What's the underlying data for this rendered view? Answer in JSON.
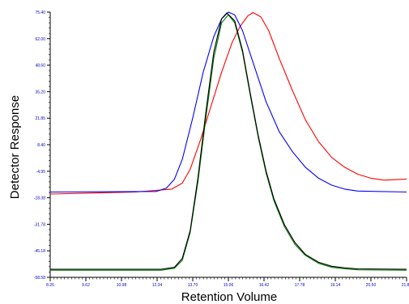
{
  "chart_data": {
    "type": "line",
    "xlabel": "Retention Volume",
    "ylabel": "Detector Response",
    "xlim": [
      8.26,
      21.86
    ],
    "ylim": [
      -58.58,
      75.4
    ],
    "grid": false,
    "x_ticks": [
      "8.26",
      "9.62",
      "10.98",
      "12.34",
      "13.70",
      "15.06",
      "16.42",
      "17.78",
      "19.14",
      "20.50",
      "21.86"
    ],
    "y_ticks": [
      "75.40",
      "62.00",
      "48.60",
      "35.20",
      "21.85",
      "8.40",
      "-4.95",
      "-18.38",
      "-31.78",
      "-45.18",
      "-58.58"
    ],
    "series": [
      {
        "color": "#ff0000",
        "x": [
          8.26,
          11.5,
          12.9,
          13.3,
          13.6,
          14.0,
          14.4,
          14.8,
          15.2,
          15.5,
          15.8,
          16.0,
          16.3,
          16.6,
          17.0,
          17.5,
          18.0,
          18.5,
          19.0,
          19.5,
          20.0,
          20.5,
          21.0,
          21.86
        ],
        "y": [
          -16.5,
          -15.5,
          -14.0,
          -11.0,
          -4.0,
          11.0,
          28.0,
          45.0,
          60.0,
          68.0,
          73.5,
          75.2,
          73.0,
          66.0,
          52.0,
          36.0,
          21.0,
          10.0,
          2.0,
          -3.0,
          -6.5,
          -8.5,
          -9.5,
          -9.0
        ]
      },
      {
        "color": "#0000ff",
        "x": [
          8.26,
          12.3,
          12.7,
          13.0,
          13.3,
          13.7,
          14.1,
          14.5,
          14.8,
          15.06,
          15.3,
          15.6,
          16.0,
          16.5,
          17.0,
          17.5,
          18.0,
          18.5,
          19.0,
          19.5,
          20.0,
          21.86
        ],
        "y": [
          -15.5,
          -15.2,
          -13.5,
          -9.0,
          1.0,
          22.0,
          45.0,
          63.0,
          72.0,
          75.4,
          74.0,
          66.0,
          50.0,
          30.0,
          15.0,
          5.0,
          -3.0,
          -8.5,
          -12.0,
          -14.0,
          -15.0,
          -15.5
        ]
      },
      {
        "color": "#007a00",
        "x": [
          8.26,
          12.5,
          13.0,
          13.3,
          13.6,
          13.9,
          14.2,
          14.5,
          14.8,
          15.06,
          15.3,
          15.6,
          15.9,
          16.2,
          16.5,
          16.8,
          17.2,
          17.6,
          18.0,
          18.5,
          19.0,
          19.5,
          20.0,
          21.86
        ],
        "y": [
          -55.0,
          -55.0,
          -54.0,
          -50.0,
          -36.0,
          -10.0,
          22.0,
          52.0,
          70.0,
          74.0,
          70.0,
          55.0,
          33.0,
          12.0,
          -6.0,
          -20.0,
          -33.0,
          -42.0,
          -47.5,
          -51.5,
          -53.5,
          -54.3,
          -54.8,
          -55.0
        ]
      },
      {
        "color": "#000000",
        "x": [
          8.26,
          12.5,
          13.0,
          13.3,
          13.6,
          13.9,
          14.2,
          14.5,
          14.8,
          15.0,
          15.3,
          15.6,
          15.9,
          16.2,
          16.5,
          16.8,
          17.2,
          17.6,
          18.0,
          18.5,
          19.0,
          19.5,
          20.0,
          21.86
        ],
        "y": [
          -54.5,
          -54.5,
          -53.5,
          -49.0,
          -35.0,
          -8.0,
          25.0,
          55.0,
          72.0,
          75.0,
          71.0,
          56.0,
          34.0,
          13.0,
          -5.0,
          -19.0,
          -32.0,
          -41.0,
          -47.0,
          -51.0,
          -53.0,
          -53.8,
          -54.3,
          -54.5
        ]
      }
    ]
  }
}
